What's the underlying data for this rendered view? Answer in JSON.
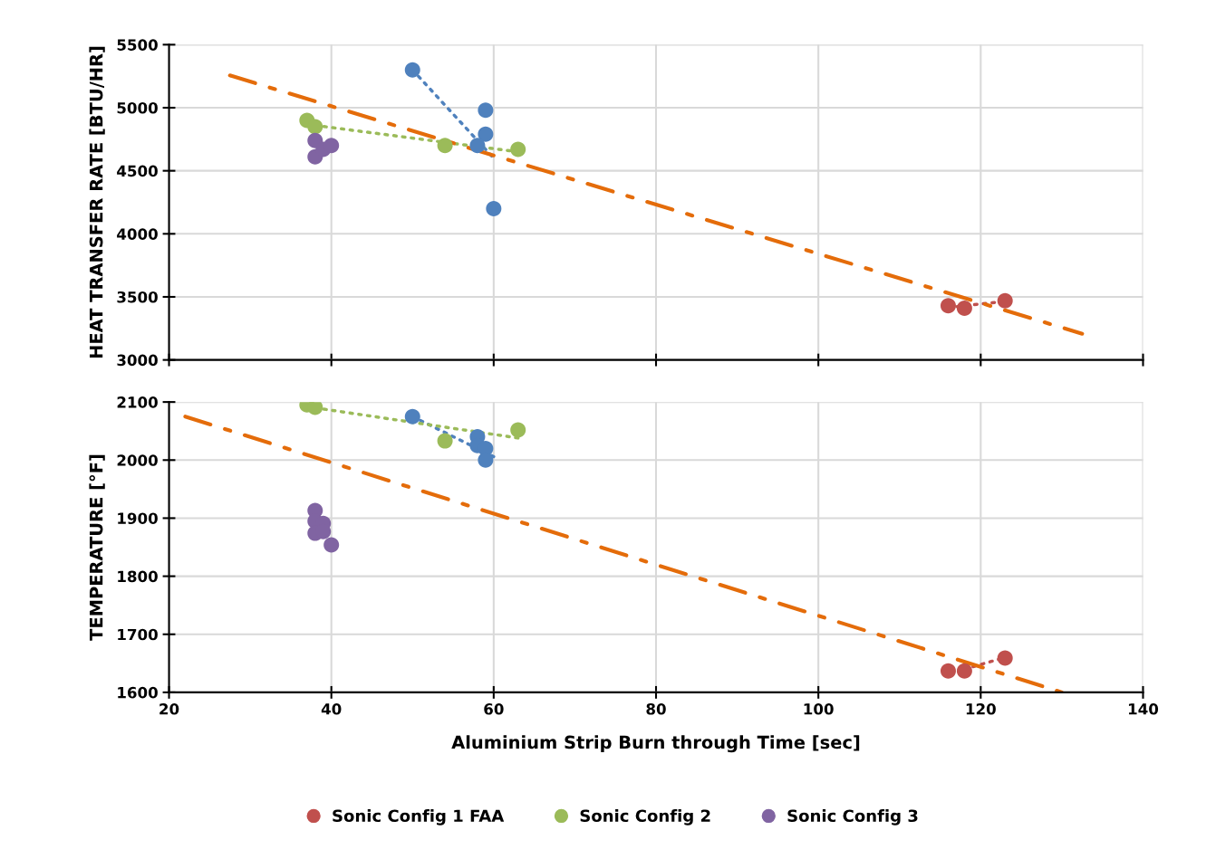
{
  "chart_data": [
    {
      "type": "scatter",
      "ylabel": "HEAT TRANSFER RATE [BTU/HR]",
      "xlim": [
        20,
        140
      ],
      "xticks": [
        20,
        40,
        60,
        80,
        100,
        120,
        140
      ],
      "ylim": [
        3000,
        5500
      ],
      "yticks": [
        3000,
        3500,
        4000,
        4500,
        5000,
        5500
      ],
      "tick_labels": "y",
      "grid": true,
      "legend": "bottom",
      "series": [
        {
          "marker": "circle",
          "color": "#4f81bd",
          "x": [
            50,
            59,
            59,
            58,
            60
          ],
          "values": [
            5300,
            4980,
            4790,
            4700,
            4200
          ]
        },
        {
          "marker": "circle",
          "name": "Sonic Config 1 FAA",
          "color": "#c0504d",
          "x": [
            116,
            118,
            123
          ],
          "values": [
            3430,
            3410,
            3470
          ]
        },
        {
          "marker": "circle",
          "name": "Sonic Config 2",
          "color": "#9bbb59",
          "x": [
            37,
            38,
            54,
            63
          ],
          "values": [
            4900,
            4850,
            4700,
            4670
          ]
        },
        {
          "marker": "circle",
          "name": "Sonic Config 3",
          "color": "#8064a2",
          "x": [
            38,
            38,
            39,
            40
          ],
          "values": [
            4740,
            4610,
            4670,
            4700
          ]
        },
        {
          "type": "line",
          "line_style": "dotted",
          "color": "#4f81bd",
          "x": [
            50,
            60
          ],
          "values": [
            5300,
            4600
          ]
        },
        {
          "type": "line",
          "line_style": "dotted",
          "color": "#c0504d",
          "x": [
            116,
            123
          ],
          "values": [
            3416,
            3464
          ]
        },
        {
          "type": "line",
          "line_style": "dotted",
          "color": "#9bbb59",
          "x": [
            38,
            63
          ],
          "values": [
            4860,
            4650
          ]
        },
        {
          "type": "line",
          "line_style": "dashed",
          "color": "#e46c0a",
          "x": [
            27.5,
            132.5
          ],
          "values": [
            5256,
            3208
          ]
        }
      ]
    },
    {
      "type": "scatter",
      "ylabel": "TEMPERATURE [°F]",
      "xlabel": "Aluminium Strip Burn through Time [sec]",
      "xlim": [
        20,
        140
      ],
      "xticks": [
        20,
        40,
        60,
        80,
        100,
        120,
        140
      ],
      "ylim": [
        1600,
        2100
      ],
      "yticks": [
        1600,
        1700,
        1800,
        1900,
        2000,
        2100
      ],
      "grid": true,
      "series": [
        {
          "marker": "circle",
          "color": "#4f81bd",
          "x": [
            50,
            58,
            58,
            59,
            59
          ],
          "values": [
            2075,
            2040,
            2025,
            2020,
            2000
          ]
        },
        {
          "marker": "circle",
          "color": "#c0504d",
          "x": [
            116,
            118,
            123
          ],
          "values": [
            1637,
            1637,
            1659
          ]
        },
        {
          "marker": "circle",
          "color": "#9bbb59",
          "x": [
            37,
            38,
            54,
            63
          ],
          "values": [
            2095,
            2091,
            2033,
            2052
          ]
        },
        {
          "marker": "circle",
          "color": "#8064a2",
          "x": [
            38,
            38,
            39,
            38,
            39,
            40
          ],
          "values": [
            1913,
            1895,
            1891,
            1874,
            1877,
            1854
          ]
        },
        {
          "type": "line",
          "line_style": "dotted",
          "color": "#4f81bd",
          "x": [
            50,
            60
          ],
          "values": [
            2075,
            2006
          ]
        },
        {
          "type": "line",
          "line_style": "dotted",
          "color": "#c0504d",
          "x": [
            118,
            123
          ],
          "values": [
            1640,
            1660
          ]
        },
        {
          "type": "line",
          "line_style": "dotted",
          "color": "#9bbb59",
          "x": [
            38,
            63
          ],
          "values": [
            2090,
            2038
          ]
        },
        {
          "type": "line",
          "line_style": "dashed",
          "color": "#e46c0a",
          "x": [
            22,
            130
          ],
          "values": [
            2075,
            1600
          ]
        }
      ]
    }
  ]
}
